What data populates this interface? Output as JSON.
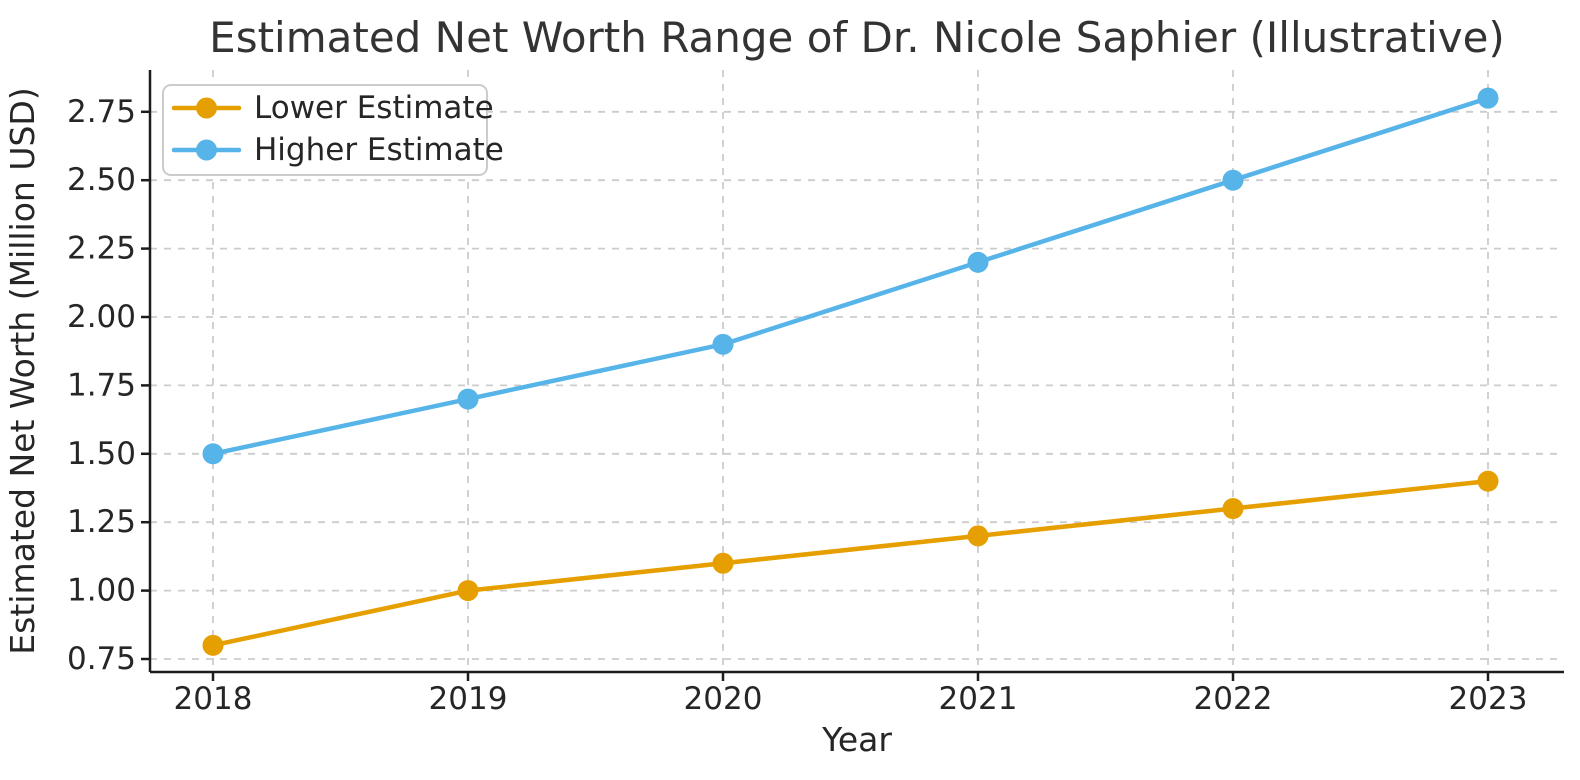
{
  "chart_data": {
    "type": "line",
    "title": "Estimated Net Worth Range of Dr. Nicole Saphier (Illustrative)",
    "xlabel": "Year",
    "ylabel": "Estimated Net Worth (Million USD)",
    "categories": [
      "2018",
      "2019",
      "2020",
      "2021",
      "2022",
      "2023"
    ],
    "series": [
      {
        "name": "Lower Estimate",
        "color": "#E69F00",
        "values": [
          0.8,
          1.0,
          1.1,
          1.2,
          1.3,
          1.4
        ]
      },
      {
        "name": "Higher Estimate",
        "color": "#56B4E9",
        "values": [
          1.5,
          1.7,
          1.9,
          2.2,
          2.5,
          2.8
        ]
      }
    ],
    "ytick_values": [
      0.75,
      1.0,
      1.25,
      1.5,
      1.75,
      2.0,
      2.25,
      2.5,
      2.75
    ],
    "ytick_labels": [
      "0.75",
      "1.00",
      "1.25",
      "1.50",
      "1.75",
      "2.00",
      "2.25",
      "2.50",
      "2.75"
    ],
    "ylim": [
      0.7,
      2.9
    ],
    "grid": true,
    "grid_style": "dashed",
    "legend_position": "upper left",
    "colors": {
      "grid": "#cccccc",
      "spine": "#1c1c1c",
      "text": "#262626",
      "background": "#ffffff",
      "legend_border": "#cccccc"
    }
  }
}
